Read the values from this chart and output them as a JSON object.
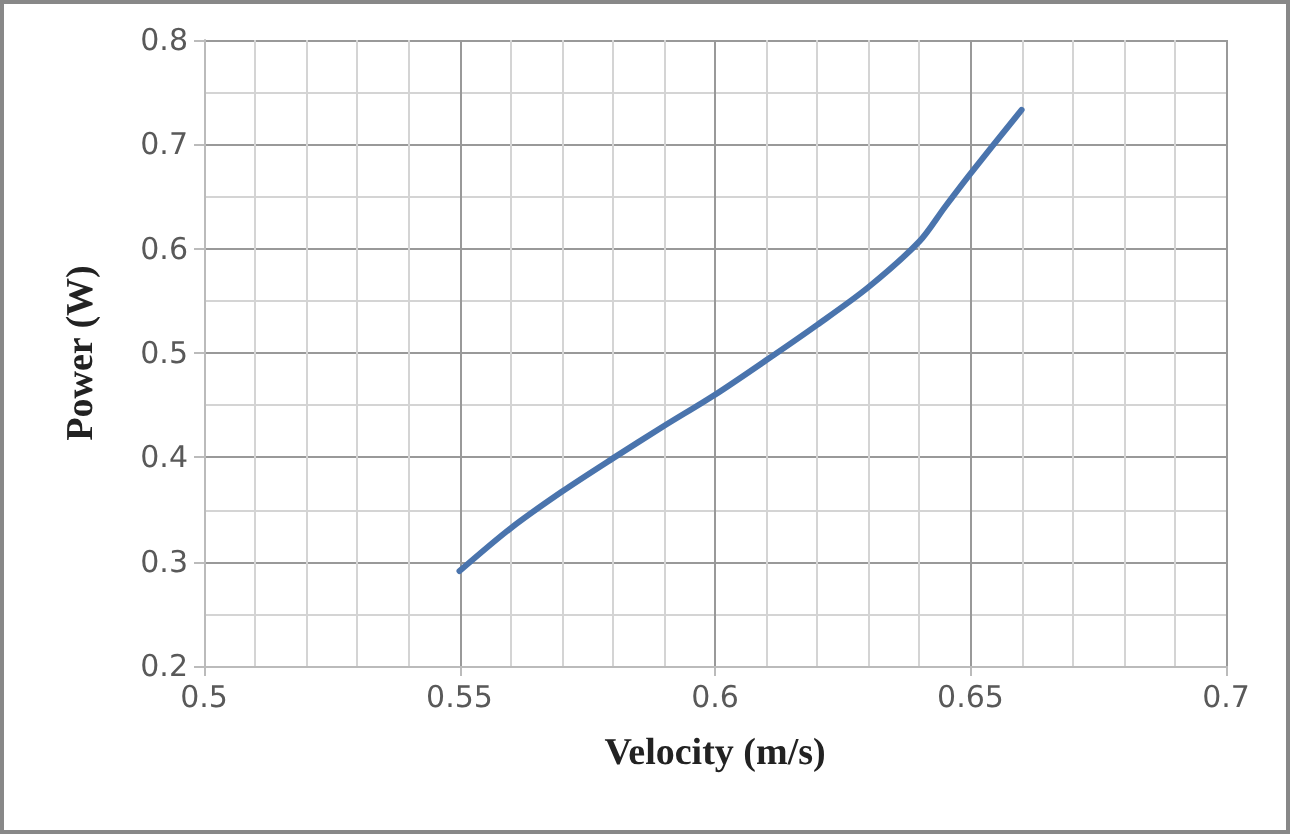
{
  "chart_data": {
    "type": "line",
    "xlabel": "Velocity (m/s)",
    "ylabel": "Power (W)",
    "x": [
      0.55,
      0.56,
      0.57,
      0.58,
      0.59,
      0.6,
      0.61,
      0.62,
      0.63,
      0.64,
      0.645,
      0.65,
      0.66
    ],
    "series": [
      {
        "color": "#4a74ad",
        "values": [
          0.291,
          0.332,
          0.367,
          0.399,
          0.43,
          0.46,
          0.493,
          0.527,
          0.563,
          0.607,
          0.64,
          0.672,
          0.733
        ]
      }
    ],
    "xlim": [
      0.5,
      0.7
    ],
    "xticks": [
      0.5,
      0.55,
      0.6,
      0.65,
      0.7
    ],
    "ylim": [
      0.2,
      0.8
    ],
    "yticks": [
      0.2,
      0.3,
      0.4,
      0.5,
      0.6,
      0.7,
      0.8
    ],
    "grid": true,
    "marker": "none",
    "line_style": "solid"
  }
}
